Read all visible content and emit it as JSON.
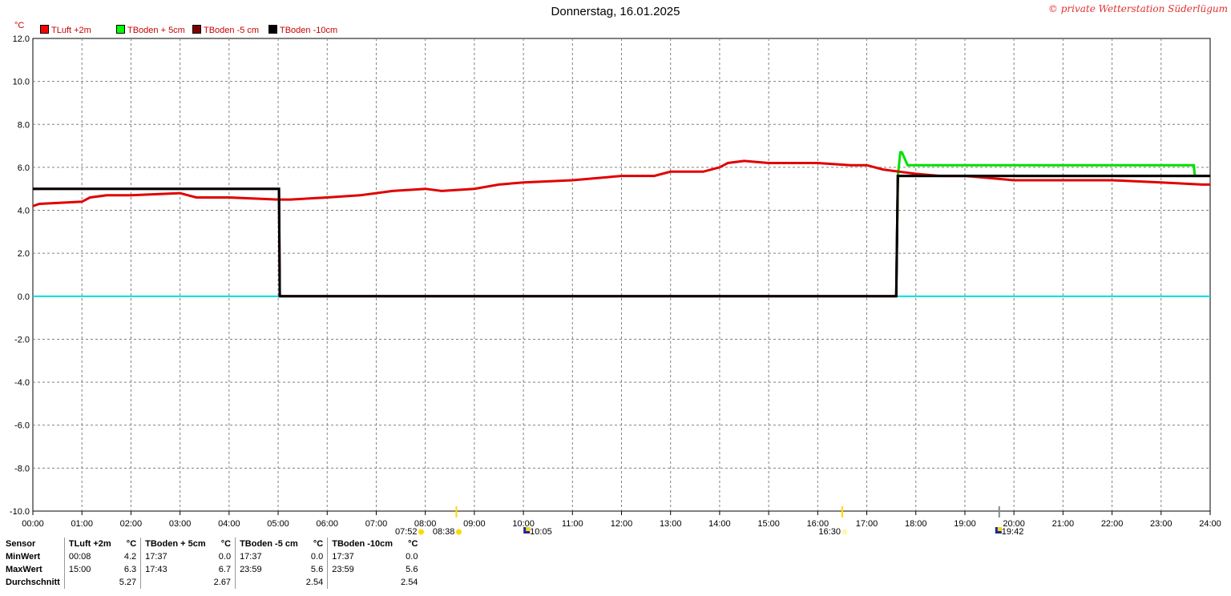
{
  "title": "Donnerstag, 16.01.2025",
  "copyright": "© private Wetterstation Süderlügum",
  "unit": "°C",
  "colors": {
    "tluft": "#e00000",
    "tboden_p5": "#00e000",
    "tboden_m5": "#800000",
    "tboden_m10": "#000000",
    "zero_line": "#00e0e0",
    "grid": "#808080"
  },
  "legend": [
    {
      "label": "TLuft +2m",
      "color": "#ff0000"
    },
    {
      "label": "TBoden + 5cm",
      "color": "#00ff00"
    },
    {
      "label": "TBoden -5 cm",
      "color": "#800000"
    },
    {
      "label": "TBoden -10cm",
      "color": "#000000"
    }
  ],
  "chart_data": {
    "type": "line",
    "x_unit": "time",
    "ylim": [
      -10,
      12
    ],
    "y_ticks": [
      "12.0",
      "10.0",
      "8.0",
      "6.0",
      "4.0",
      "2.0",
      "0.0",
      "-2.0",
      "-4.0",
      "-6.0",
      "-8.0",
      "-10.0"
    ],
    "x_ticks": [
      "00:00",
      "01:00",
      "02:00",
      "03:00",
      "04:00",
      "05:00",
      "06:00",
      "07:00",
      "08:00",
      "09:00",
      "10:00",
      "11:00",
      "12:00",
      "13:00",
      "14:00",
      "15:00",
      "16:00",
      "17:00",
      "18:00",
      "19:00",
      "20:00",
      "21:00",
      "22:00",
      "23:00",
      "24:00"
    ],
    "grid": true,
    "legend_position": "top-left",
    "series": [
      {
        "name": "TLuft +2m",
        "x": [
          "00:00",
          "00:08",
          "01:00",
          "01:10",
          "01:30",
          "02:00",
          "03:00",
          "03:10",
          "03:20",
          "04:00",
          "05:00",
          "05:15",
          "06:00",
          "06:40",
          "07:00",
          "07:20",
          "08:00",
          "08:20",
          "09:00",
          "09:30",
          "10:00",
          "11:00",
          "12:00",
          "12:40",
          "13:00",
          "13:40",
          "14:00",
          "14:10",
          "14:30",
          "15:00",
          "16:00",
          "16:40",
          "17:00",
          "17:20",
          "17:40",
          "18:00",
          "18:30",
          "19:00",
          "19:30",
          "20:00",
          "21:00",
          "22:00",
          "23:00",
          "23:50",
          "24:00"
        ],
        "y": [
          4.2,
          4.3,
          4.4,
          4.6,
          4.7,
          4.7,
          4.8,
          4.7,
          4.6,
          4.6,
          4.5,
          4.5,
          4.6,
          4.7,
          4.8,
          4.9,
          5.0,
          4.9,
          5.0,
          5.2,
          5.3,
          5.4,
          5.6,
          5.6,
          5.8,
          5.8,
          6.0,
          6.2,
          6.3,
          6.2,
          6.2,
          6.1,
          6.1,
          5.9,
          5.8,
          5.7,
          5.6,
          5.6,
          5.5,
          5.4,
          5.4,
          5.4,
          5.3,
          5.2,
          5.2
        ]
      },
      {
        "name": "TBoden + 5cm",
        "x": [
          "00:00",
          "17:36",
          "17:37",
          "17:38",
          "17:41",
          "17:43",
          "17:50",
          "18:00",
          "23:40",
          "23:41",
          "23:42"
        ],
        "y": [
          0.0,
          0.0,
          2.8,
          5.6,
          6.7,
          6.7,
          6.1,
          6.1,
          6.1,
          5.7,
          5.6
        ]
      },
      {
        "name": "TBoden -5 cm",
        "x": [
          "00:00",
          "05:01",
          "05:02",
          "17:36",
          "17:37",
          "17:38",
          "24:00"
        ],
        "y": [
          5.0,
          5.0,
          0.0,
          0.0,
          2.8,
          5.6,
          5.6
        ]
      },
      {
        "name": "TBoden -10cm",
        "x": [
          "00:00",
          "05:01",
          "05:02",
          "17:36",
          "17:37",
          "17:38",
          "24:00"
        ],
        "y": [
          5.0,
          5.0,
          0.0,
          0.0,
          2.8,
          5.6,
          5.6
        ]
      }
    ],
    "sun_events": [
      {
        "label": "07:52",
        "kind": "sunrise"
      },
      {
        "label": "08:38",
        "kind": "sunrise-civil"
      },
      {
        "label": "10:05",
        "kind": "moonset"
      },
      {
        "label": "16:30",
        "kind": "sunset"
      },
      {
        "label": "19:42",
        "kind": "moonrise"
      }
    ]
  },
  "stats": {
    "headers": [
      "Sensor",
      "TLuft +2m",
      "°C",
      "TBoden + 5cm",
      "°C",
      "TBoden -5 cm",
      "°C",
      "TBoden -10cm",
      "°C"
    ],
    "rows": [
      {
        "label": "MinWert",
        "cells": [
          "00:08",
          "4.2",
          "17:37",
          "0.0",
          "17:37",
          "0.0",
          "17:37",
          "0.0"
        ]
      },
      {
        "label": "MaxWert",
        "cells": [
          "15:00",
          "6.3",
          "17:43",
          "6.7",
          "23:59",
          "5.6",
          "23:59",
          "5.6"
        ]
      },
      {
        "label": "Durchschnitt",
        "cells": [
          "",
          "5.27",
          "",
          "2.67",
          "",
          "2.54",
          "",
          "2.54"
        ]
      }
    ]
  }
}
